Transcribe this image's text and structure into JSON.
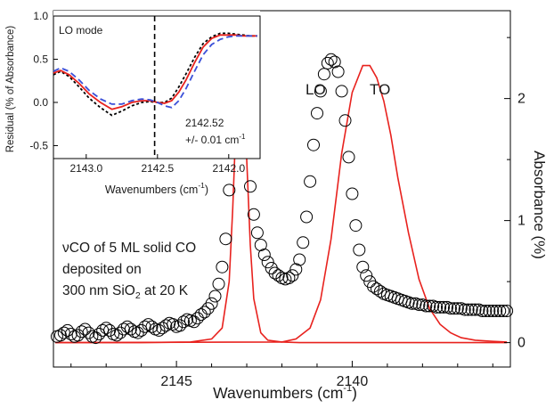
{
  "chart_data": [
    {
      "type": "scatter",
      "xlabel": "Wavenumbers (cm",
      "xlabel_sup": "-1",
      "xlabel_end": ")",
      "ylabel": "Absorbance (%)",
      "x_reversed": true,
      "xlim": [
        2148.5,
        2135.5
      ],
      "ylim": [
        -0.2,
        2.72
      ],
      "y_axis_side": "right",
      "x_ticks": [
        {
          "value": 2145,
          "label": "2145"
        },
        {
          "value": 2140,
          "label": "2140"
        }
      ],
      "y_ticks": [
        {
          "value": 0,
          "label": "0"
        },
        {
          "value": 1,
          "label": "1"
        },
        {
          "value": 2,
          "label": "2"
        }
      ],
      "peak_labels": [
        {
          "text": "LO",
          "x": 2141.8,
          "y": 2.2
        },
        {
          "text": "TO",
          "x": 2139.7,
          "y": 2.2
        }
      ],
      "annotation": {
        "lines": [
          {
            "pre": "",
            "nu": "ν",
            "main": "CO of 5 ML solid CO",
            "sub": "",
            "post": ""
          },
          {
            "pre": "deposited on",
            "nu": "",
            "main": "",
            "sub": "",
            "post": ""
          },
          {
            "pre": "300 nm SiO",
            "nu": "",
            "main": "",
            "sub": "2",
            "post": " at 20 K"
          }
        ]
      },
      "series": [
        {
          "name": "Experiment",
          "style": "open-circles",
          "color": "#000000",
          "x": [
            2148.4,
            2148.3,
            2148.2,
            2148.1,
            2148.0,
            2147.9,
            2147.8,
            2147.7,
            2147.6,
            2147.5,
            2147.4,
            2147.3,
            2147.2,
            2147.1,
            2147.0,
            2146.9,
            2146.8,
            2146.7,
            2146.6,
            2146.5,
            2146.4,
            2146.3,
            2146.2,
            2146.1,
            2146.0,
            2145.9,
            2145.8,
            2145.7,
            2145.6,
            2145.5,
            2145.4,
            2145.3,
            2145.2,
            2145.1,
            2145.0,
            2144.9,
            2144.8,
            2144.7,
            2144.6,
            2144.5,
            2144.4,
            2144.3,
            2144.2,
            2144.1,
            2144.0,
            2143.9,
            2143.8,
            2143.7,
            2143.6,
            2143.5,
            2143.4,
            2143.3,
            2143.2,
            2143.1,
            2143.0,
            2142.9,
            2142.8,
            2142.7,
            2142.6,
            2142.5,
            2142.4,
            2142.3,
            2142.2,
            2142.1,
            2142.0,
            2141.9,
            2141.8,
            2141.7,
            2141.6,
            2141.5,
            2141.4,
            2141.3,
            2141.2,
            2141.1,
            2141.0,
            2140.9,
            2140.8,
            2140.7,
            2140.6,
            2140.5,
            2140.4,
            2140.3,
            2140.2,
            2140.1,
            2140.0,
            2139.9,
            2139.8,
            2139.7,
            2139.6,
            2139.5,
            2139.4,
            2139.3,
            2139.2,
            2139.1,
            2139.0,
            2138.9,
            2138.8,
            2138.7,
            2138.6,
            2138.5,
            2138.4,
            2138.3,
            2138.2,
            2138.1,
            2138.0,
            2137.9,
            2137.8,
            2137.7,
            2137.6,
            2137.5,
            2137.4,
            2137.3,
            2137.2,
            2137.1,
            2137.0,
            2136.9,
            2136.8,
            2136.7,
            2136.6,
            2136.5,
            2136.4,
            2136.3,
            2136.2,
            2136.1,
            2136.0,
            2135.9,
            2135.8,
            2135.7,
            2135.6
          ],
          "y": [
            0.05,
            0.06,
            0.08,
            0.1,
            0.07,
            0.05,
            0.06,
            0.09,
            0.11,
            0.08,
            0.05,
            0.04,
            0.07,
            0.1,
            0.12,
            0.1,
            0.07,
            0.06,
            0.08,
            0.11,
            0.13,
            0.11,
            0.09,
            0.08,
            0.1,
            0.13,
            0.15,
            0.13,
            0.11,
            0.1,
            0.12,
            0.14,
            0.16,
            0.15,
            0.13,
            0.14,
            0.17,
            0.19,
            0.18,
            0.17,
            0.2,
            0.23,
            0.25,
            0.28,
            0.32,
            0.38,
            0.48,
            0.62,
            0.85,
            1.25,
            1.8,
            2.26,
            2.33,
            2.05,
            1.62,
            1.28,
            1.05,
            0.9,
            0.8,
            0.72,
            0.66,
            0.61,
            0.57,
            0.55,
            0.53,
            0.52,
            0.53,
            0.55,
            0.6,
            0.68,
            0.82,
            1.03,
            1.32,
            1.62,
            1.88,
            2.06,
            2.2,
            2.29,
            2.32,
            2.3,
            2.22,
            2.06,
            1.82,
            1.52,
            1.22,
            0.96,
            0.76,
            0.62,
            0.55,
            0.5,
            0.46,
            0.44,
            0.42,
            0.4,
            0.39,
            0.38,
            0.37,
            0.36,
            0.35,
            0.34,
            0.33,
            0.32,
            0.32,
            0.31,
            0.31,
            0.3,
            0.3,
            0.3,
            0.29,
            0.29,
            0.29,
            0.29,
            0.28,
            0.28,
            0.28,
            0.28,
            0.27,
            0.27,
            0.27,
            0.27,
            0.27,
            0.26,
            0.26,
            0.26,
            0.26,
            0.26,
            0.26,
            0.26,
            0.26
          ]
        },
        {
          "name": "LO fit",
          "style": "line",
          "color": "#e8221e",
          "x": [
            2148.45,
            2146.0,
            2144.6,
            2144.0,
            2143.7,
            2143.5,
            2143.4,
            2143.3,
            2143.2,
            2143.1,
            2143.0,
            2142.9,
            2142.8,
            2142.6,
            2142.4,
            2142.0,
            2141.5,
            2140.5,
            2135.6
          ],
          "y": [
            0.0,
            0.0,
            0.005,
            0.03,
            0.12,
            0.5,
            1.1,
            1.85,
            2.28,
            2.2,
            1.5,
            0.8,
            0.36,
            0.08,
            0.02,
            0.005,
            0.0,
            0.0,
            0.0
          ]
        },
        {
          "name": "TO fit",
          "style": "line",
          "color": "#e8221e",
          "x": [
            2148.45,
            2142.0,
            2141.6,
            2141.2,
            2140.9,
            2140.6,
            2140.3,
            2140.0,
            2139.7,
            2139.5,
            2139.3,
            2139.1,
            2138.9,
            2138.7,
            2138.4,
            2138.1,
            2137.8,
            2137.5,
            2137.2,
            2136.9,
            2136.5,
            2136.0,
            2135.6
          ],
          "y": [
            0.0,
            0.005,
            0.03,
            0.12,
            0.35,
            0.85,
            1.55,
            2.05,
            2.27,
            2.27,
            2.17,
            1.98,
            1.7,
            1.35,
            0.9,
            0.52,
            0.28,
            0.15,
            0.08,
            0.04,
            0.02,
            0.01,
            0.005
          ]
        }
      ]
    },
    {
      "type": "line",
      "title": "LO mode",
      "xlabel": "Wavenumbers (cm",
      "xlabel_sup": "-1",
      "xlabel_end": ")",
      "ylabel": "Residual (% of Absorbance)",
      "x_reversed": true,
      "xlim": [
        2143.23,
        2141.78
      ],
      "ylim": [
        -0.65,
        1.0
      ],
      "x_ticks": [
        {
          "value": 2143.0,
          "label": "2143.0"
        },
        {
          "value": 2142.5,
          "label": "2142.5"
        },
        {
          "value": 2142.0,
          "label": "2142.0"
        }
      ],
      "y_ticks": [
        {
          "value": 1.0,
          "label": "1.0"
        },
        {
          "value": 0.5,
          "label": "0.5"
        },
        {
          "value": 0.0,
          "label": "0.0"
        },
        {
          "value": -0.5,
          "label": "-0.5"
        }
      ],
      "marker_line_x": 2142.52,
      "marker_text": "2142.52",
      "marker_error_prefix": "+/- 0.01 cm",
      "marker_error_sup": "-1",
      "series": [
        {
          "name": "black",
          "color": "#000000",
          "dash": "3,2.5",
          "x": [
            2143.23,
            2143.18,
            2143.12,
            2143.05,
            2142.98,
            2142.9,
            2142.82,
            2142.75,
            2142.68,
            2142.61,
            2142.55,
            2142.5,
            2142.45,
            2142.4,
            2142.35,
            2142.3,
            2142.24,
            2142.18,
            2142.12,
            2142.06,
            2142.0,
            2141.95,
            2141.9,
            2141.85,
            2141.8
          ],
          "y": [
            0.32,
            0.36,
            0.3,
            0.18,
            0.05,
            -0.06,
            -0.15,
            -0.1,
            -0.04,
            0.0,
            0.01,
            0.0,
            0.0,
            0.05,
            0.18,
            0.33,
            0.52,
            0.68,
            0.76,
            0.8,
            0.8,
            0.79,
            0.78,
            0.77,
            0.77
          ]
        },
        {
          "name": "red",
          "color": "#e8221e",
          "dash": "",
          "x": [
            2143.23,
            2143.18,
            2143.12,
            2143.05,
            2142.98,
            2142.9,
            2142.82,
            2142.75,
            2142.68,
            2142.61,
            2142.55,
            2142.5,
            2142.45,
            2142.4,
            2142.35,
            2142.3,
            2142.24,
            2142.18,
            2142.12,
            2142.06,
            2142.0,
            2141.95,
            2141.9,
            2141.85,
            2141.8
          ],
          "y": [
            0.34,
            0.37,
            0.32,
            0.22,
            0.1,
            0.0,
            -0.08,
            -0.05,
            0.0,
            0.02,
            0.02,
            0.0,
            -0.01,
            0.02,
            0.12,
            0.26,
            0.46,
            0.64,
            0.74,
            0.78,
            0.78,
            0.78,
            0.77,
            0.77,
            0.77
          ]
        },
        {
          "name": "blue",
          "color": "#3a4fd8",
          "dash": "7,4",
          "x": [
            2143.23,
            2143.18,
            2143.12,
            2143.05,
            2142.98,
            2142.9,
            2142.82,
            2142.75,
            2142.68,
            2142.61,
            2142.55,
            2142.5,
            2142.45,
            2142.4,
            2142.35,
            2142.3,
            2142.24,
            2142.18,
            2142.12,
            2142.06,
            2142.0,
            2141.95,
            2141.9,
            2141.85,
            2141.8
          ],
          "y": [
            0.36,
            0.4,
            0.36,
            0.26,
            0.14,
            0.04,
            -0.02,
            -0.02,
            0.02,
            0.04,
            0.03,
            0.0,
            -0.04,
            -0.06,
            0.02,
            0.16,
            0.36,
            0.55,
            0.67,
            0.73,
            0.76,
            0.77,
            0.77,
            0.77,
            0.77
          ]
        }
      ]
    }
  ]
}
